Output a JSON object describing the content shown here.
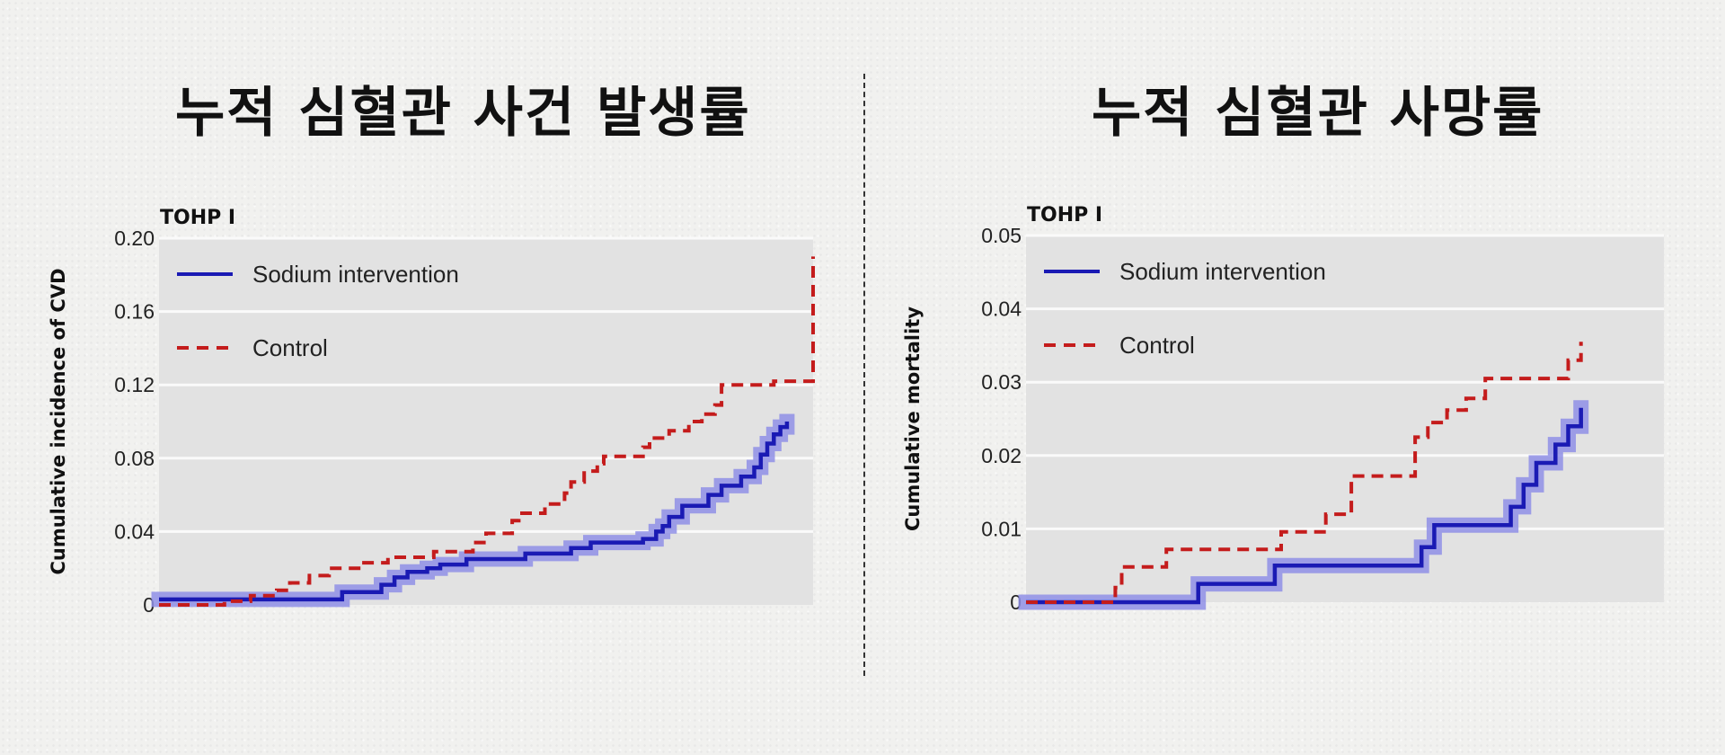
{
  "titles": {
    "left": "누적 심혈관 사건 발생률",
    "right": "누적 심혈관 사망률"
  },
  "colors": {
    "intervention": "#1a1ab4",
    "intervention_band": "#8f8fe6",
    "control": "#c41c1c",
    "plot_background": "#e2e2e2"
  },
  "chart_data": [
    {
      "type": "line",
      "subtype": "step",
      "panel_label": "TOHP I",
      "ylabel": "Cumulative incidence of CVD",
      "xlabel": "",
      "ylim": [
        0,
        0.2
      ],
      "yticks": [
        0,
        0.04,
        0.08,
        0.12,
        0.16,
        0.2
      ],
      "ytick_labels": [
        "0",
        "0.04",
        "0.08",
        "0.12",
        "0.16",
        "0.20"
      ],
      "xlim": [
        0,
        100
      ],
      "x_axis_shown": false,
      "grid": "horizontal",
      "legend": {
        "position": "top-left",
        "entries": [
          "Sodium intervention",
          "Control"
        ]
      },
      "series": [
        {
          "name": "Sodium intervention",
          "style": "solid",
          "confidence_band": true,
          "points": [
            [
              0,
              0.003
            ],
            [
              28,
              0.003
            ],
            [
              28,
              0.007
            ],
            [
              34,
              0.007
            ],
            [
              34,
              0.011
            ],
            [
              36,
              0.011
            ],
            [
              36,
              0.015
            ],
            [
              38,
              0.015
            ],
            [
              38,
              0.018
            ],
            [
              41,
              0.018
            ],
            [
              41,
              0.02
            ],
            [
              43,
              0.02
            ],
            [
              43,
              0.022
            ],
            [
              47,
              0.022
            ],
            [
              47,
              0.025
            ],
            [
              56,
              0.025
            ],
            [
              56,
              0.028
            ],
            [
              63,
              0.028
            ],
            [
              63,
              0.031
            ],
            [
              66,
              0.031
            ],
            [
              66,
              0.034
            ],
            [
              74,
              0.034
            ],
            [
              74,
              0.036
            ],
            [
              76,
              0.036
            ],
            [
              76,
              0.04
            ],
            [
              77,
              0.04
            ],
            [
              77,
              0.043
            ],
            [
              78,
              0.043
            ],
            [
              78,
              0.048
            ],
            [
              80,
              0.048
            ],
            [
              80,
              0.054
            ],
            [
              84,
              0.054
            ],
            [
              84,
              0.06
            ],
            [
              86,
              0.06
            ],
            [
              86,
              0.065
            ],
            [
              89,
              0.065
            ],
            [
              89,
              0.07
            ],
            [
              91,
              0.07
            ],
            [
              91,
              0.075
            ],
            [
              92,
              0.075
            ],
            [
              92,
              0.082
            ],
            [
              93,
              0.082
            ],
            [
              93,
              0.088
            ],
            [
              94,
              0.088
            ],
            [
              94,
              0.093
            ],
            [
              95,
              0.093
            ],
            [
              95,
              0.097
            ],
            [
              96,
              0.097
            ],
            [
              96,
              0.1
            ]
          ]
        },
        {
          "name": "Control",
          "style": "dashed",
          "confidence_band": false,
          "points": [
            [
              0,
              0
            ],
            [
              10,
              0
            ],
            [
              10,
              0.002
            ],
            [
              14,
              0.002
            ],
            [
              14,
              0.005
            ],
            [
              18,
              0.005
            ],
            [
              18,
              0.008
            ],
            [
              20,
              0.008
            ],
            [
              20,
              0.012
            ],
            [
              23,
              0.012
            ],
            [
              23,
              0.016
            ],
            [
              26,
              0.016
            ],
            [
              26,
              0.02
            ],
            [
              31,
              0.02
            ],
            [
              31,
              0.023
            ],
            [
              35,
              0.023
            ],
            [
              35,
              0.026
            ],
            [
              42,
              0.026
            ],
            [
              42,
              0.029
            ],
            [
              48,
              0.029
            ],
            [
              48,
              0.034
            ],
            [
              50,
              0.034
            ],
            [
              50,
              0.039
            ],
            [
              54,
              0.039
            ],
            [
              54,
              0.046
            ],
            [
              55,
              0.046
            ],
            [
              55,
              0.05
            ],
            [
              59,
              0.05
            ],
            [
              59,
              0.055
            ],
            [
              62,
              0.055
            ],
            [
              62,
              0.061
            ],
            [
              63,
              0.061
            ],
            [
              63,
              0.067
            ],
            [
              65,
              0.067
            ],
            [
              65,
              0.073
            ],
            [
              67,
              0.073
            ],
            [
              67,
              0.077
            ],
            [
              68,
              0.077
            ],
            [
              68,
              0.081
            ],
            [
              74,
              0.081
            ],
            [
              74,
              0.086
            ],
            [
              75,
              0.086
            ],
            [
              75,
              0.091
            ],
            [
              78,
              0.091
            ],
            [
              78,
              0.095
            ],
            [
              81,
              0.095
            ],
            [
              81,
              0.1
            ],
            [
              83,
              0.1
            ],
            [
              83,
              0.104
            ],
            [
              85,
              0.104
            ],
            [
              85,
              0.109
            ],
            [
              86,
              0.109
            ],
            [
              86,
              0.12
            ],
            [
              94,
              0.12
            ],
            [
              94,
              0.122
            ],
            [
              100,
              0.122
            ],
            [
              100,
              0.19
            ]
          ]
        }
      ]
    },
    {
      "type": "line",
      "subtype": "step",
      "panel_label": "TOHP I",
      "ylabel": "Cumulative mortality",
      "xlabel": "",
      "ylim": [
        0,
        0.05
      ],
      "yticks": [
        0,
        0.01,
        0.02,
        0.03,
        0.04,
        0.05
      ],
      "ytick_labels": [
        "0",
        "0.01",
        "0.02",
        "0.03",
        "0.04",
        "0.05"
      ],
      "xlim": [
        0,
        100
      ],
      "x_axis_shown": false,
      "grid": "horizontal",
      "legend": {
        "position": "top-left",
        "entries": [
          "Sodium intervention",
          "Control"
        ]
      },
      "series": [
        {
          "name": "Sodium intervention",
          "style": "solid",
          "confidence_band": true,
          "points": [
            [
              0,
              0
            ],
            [
              27,
              0
            ],
            [
              27,
              0.0025
            ],
            [
              39,
              0.0025
            ],
            [
              39,
              0.005
            ],
            [
              62,
              0.005
            ],
            [
              62,
              0.0075
            ],
            [
              64,
              0.0075
            ],
            [
              64,
              0.0105
            ],
            [
              76,
              0.0105
            ],
            [
              76,
              0.013
            ],
            [
              78,
              0.013
            ],
            [
              78,
              0.016
            ],
            [
              80,
              0.016
            ],
            [
              80,
              0.019
            ],
            [
              83,
              0.019
            ],
            [
              83,
              0.0215
            ],
            [
              85,
              0.0215
            ],
            [
              85,
              0.024
            ],
            [
              87,
              0.024
            ],
            [
              87,
              0.0265
            ]
          ]
        },
        {
          "name": "Control",
          "style": "dashed",
          "confidence_band": false,
          "points": [
            [
              0,
              0
            ],
            [
              14,
              0
            ],
            [
              14,
              0.002
            ],
            [
              15,
              0.002
            ],
            [
              15,
              0.0048
            ],
            [
              22,
              0.0048
            ],
            [
              22,
              0.0072
            ],
            [
              40,
              0.0072
            ],
            [
              40,
              0.0096
            ],
            [
              47,
              0.0096
            ],
            [
              47,
              0.012
            ],
            [
              51,
              0.012
            ],
            [
              51,
              0.0172
            ],
            [
              61,
              0.0172
            ],
            [
              61,
              0.0225
            ],
            [
              63,
              0.0225
            ],
            [
              63,
              0.0245
            ],
            [
              66,
              0.0245
            ],
            [
              66,
              0.0262
            ],
            [
              69,
              0.0262
            ],
            [
              69,
              0.0278
            ],
            [
              72,
              0.0278
            ],
            [
              72,
              0.0305
            ],
            [
              85,
              0.0305
            ],
            [
              85,
              0.033
            ],
            [
              87,
              0.033
            ],
            [
              87,
              0.0355
            ]
          ]
        }
      ]
    }
  ]
}
